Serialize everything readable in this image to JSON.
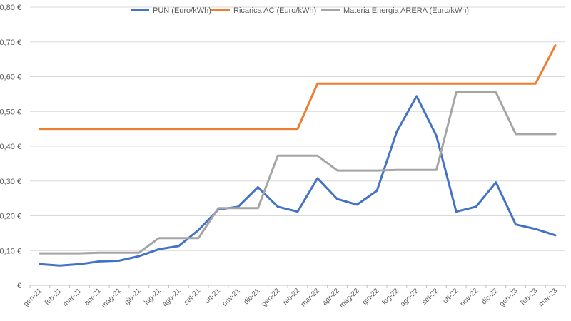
{
  "chart_data": {
    "type": "line",
    "title": "",
    "xlabel": "",
    "ylabel": "",
    "ylim": [
      0,
      0.8
    ],
    "grid": true,
    "legend_position": "top",
    "y_ticks": [
      "€",
      "0,10 €",
      "0,20 €",
      "0,30 €",
      "0,40 €",
      "0,50 €",
      "0,60 €",
      "0,70 €",
      "0,80 €"
    ],
    "y_tick_values": [
      0,
      0.1,
      0.2,
      0.3,
      0.4,
      0.5,
      0.6,
      0.7,
      0.8
    ],
    "categories": [
      "gen-21",
      "feb-21",
      "mar-21",
      "apr-21",
      "mag-21",
      "giu-21",
      "lug-21",
      "ago-21",
      "set-21",
      "ott-21",
      "nov-21",
      "dic-21",
      "gen-22",
      "feb-22",
      "mar-22",
      "apr-22",
      "mag-22",
      "giu-22",
      "lug-22",
      "ago-22",
      "set-22",
      "ott-22",
      "nov-22",
      "dic-22",
      "gen-23",
      "feb-23",
      "mar-23"
    ],
    "series": [
      {
        "name": "PUN (Euro/kWh)",
        "color": "#4472c4",
        "values": [
          0.061,
          0.057,
          0.061,
          0.069,
          0.071,
          0.084,
          0.104,
          0.113,
          0.159,
          0.218,
          0.226,
          0.282,
          0.226,
          0.212,
          0.308,
          0.248,
          0.232,
          0.272,
          0.442,
          0.544,
          0.43,
          0.212,
          0.226,
          0.296,
          0.175,
          0.162,
          0.144
        ]
      },
      {
        "name": "Ricarica AC (Euro/kWh)",
        "color": "#ed7d31",
        "values": [
          0.45,
          0.45,
          0.45,
          0.45,
          0.45,
          0.45,
          0.45,
          0.45,
          0.45,
          0.45,
          0.45,
          0.45,
          0.45,
          0.45,
          0.58,
          0.58,
          0.58,
          0.58,
          0.58,
          0.58,
          0.58,
          0.58,
          0.58,
          0.58,
          0.58,
          0.58,
          0.69
        ]
      },
      {
        "name": "Materia Energia ARERA (Euro/kWh)",
        "color": "#a5a5a5",
        "values": [
          0.092,
          0.092,
          0.092,
          0.094,
          0.094,
          0.094,
          0.136,
          0.136,
          0.136,
          0.222,
          0.222,
          0.222,
          0.373,
          0.373,
          0.373,
          0.33,
          0.33,
          0.33,
          0.332,
          0.332,
          0.332,
          0.555,
          0.555,
          0.555,
          0.435,
          0.435,
          0.435
        ]
      }
    ]
  }
}
